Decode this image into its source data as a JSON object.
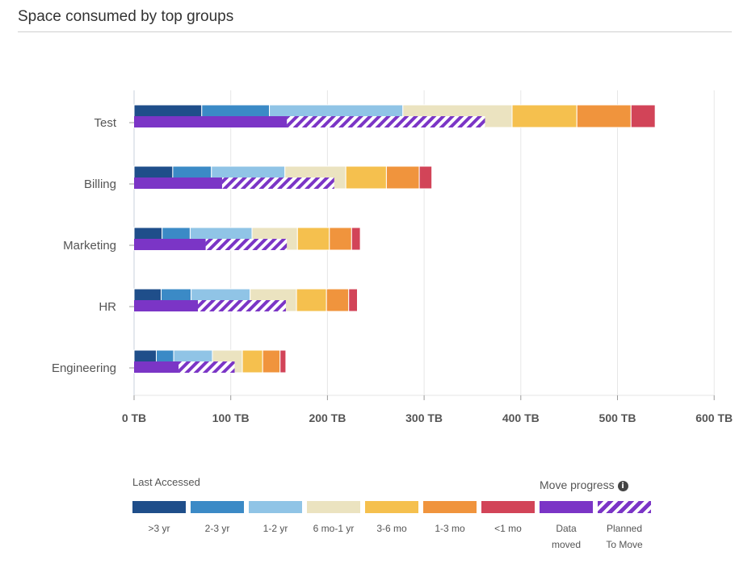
{
  "title": "Space consumed by top groups",
  "legend": {
    "heading_left": "Last Accessed",
    "heading_right": "Move progress",
    "info_icon": "info-icon",
    "items": [
      {
        "key": "gt3yr",
        "label": ">3 yr",
        "color": "#1f4e8a"
      },
      {
        "key": "2to3yr",
        "label": "2-3 yr",
        "color": "#3b8ac6"
      },
      {
        "key": "1to2yr",
        "label": "1-2 yr",
        "color": "#90c4e6"
      },
      {
        "key": "6moto1yr",
        "label": "6 mo-1 yr",
        "color": "#ebe3c0"
      },
      {
        "key": "3to6mo",
        "label": "3-6 mo",
        "color": "#f5c04e"
      },
      {
        "key": "1to3mo",
        "label": "1-3 mo",
        "color": "#f0943d"
      },
      {
        "key": "lt1mo",
        "label": "<1 mo",
        "color": "#d24458"
      },
      {
        "key": "moved",
        "label": "Data moved",
        "color": "#7b35c6",
        "hatched": false
      },
      {
        "key": "planned",
        "label": "Planned To Move",
        "color": "#7b35c6",
        "hatched": true
      }
    ]
  },
  "chart_data": {
    "type": "bar",
    "orientation": "horizontal",
    "stacked": true,
    "title": "Space consumed by top groups",
    "categories": [
      "Test",
      "Billing",
      "Marketing",
      "HR",
      "Engineering"
    ],
    "x_unit": "TB",
    "xlim": [
      0,
      600
    ],
    "xticks": [
      0,
      100,
      200,
      300,
      400,
      500,
      600
    ],
    "xtick_labels": [
      "0 TB",
      "100 TB",
      "200 TB",
      "300 TB",
      "400 TB",
      "500 TB",
      "600 TB"
    ],
    "grid": "vertical",
    "legend_position": "bottom",
    "series": [
      {
        "name": ">3 yr",
        "color": "#1f4e8a",
        "values": [
          70,
          40,
          29,
          28,
          23
        ]
      },
      {
        "name": "2-3 yr",
        "color": "#3b8ac6",
        "values": [
          70,
          40,
          29,
          31,
          18
        ]
      },
      {
        "name": "1-2 yr",
        "color": "#90c4e6",
        "values": [
          138,
          76,
          64,
          61,
          40
        ]
      },
      {
        "name": "6 mo-1 yr",
        "color": "#ebe3c0",
        "values": [
          113,
          63,
          47,
          48,
          31
        ]
      },
      {
        "name": "3-6 mo",
        "color": "#f5c04e",
        "values": [
          67,
          42,
          33,
          31,
          21
        ]
      },
      {
        "name": "1-3 mo",
        "color": "#f0943d",
        "values": [
          56,
          34,
          23,
          23,
          18
        ]
      },
      {
        "name": "<1 mo",
        "color": "#d24458",
        "values": [
          25,
          13,
          9,
          9,
          6
        ]
      }
    ],
    "move_progress": {
      "moved": [
        158,
        91,
        74,
        66,
        46
      ],
      "planned_to_move": [
        205,
        116,
        84,
        91,
        58
      ]
    }
  }
}
